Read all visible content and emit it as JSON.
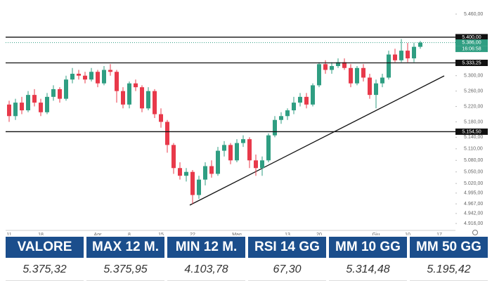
{
  "chart_data": {
    "type": "candlestick",
    "categories": [
      "11",
      null,
      null,
      null,
      null,
      "18",
      null,
      null,
      null,
      null,
      null,
      null,
      null,
      null,
      "Apr",
      null,
      null,
      null,
      null,
      "8",
      null,
      null,
      null,
      null,
      "15",
      null,
      null,
      null,
      null,
      "22",
      null,
      null,
      null,
      null,
      null,
      null,
      "Mag",
      null,
      null,
      null,
      null,
      null,
      null,
      null,
      "13",
      null,
      null,
      null,
      null,
      "20",
      null,
      null,
      null,
      null,
      null,
      null,
      null,
      null,
      "Giu",
      null,
      null,
      null,
      null,
      "10",
      null,
      null,
      null,
      null,
      "17"
    ],
    "open": [
      5225,
      5195,
      5230,
      5210,
      5250,
      5230,
      5205,
      5245,
      5265,
      5240,
      5290,
      5305,
      5300,
      5290,
      5310,
      5280,
      5315,
      5310,
      5260,
      5225,
      5280,
      5270,
      5215,
      5260,
      5200,
      5180,
      5120,
      5060,
      5040,
      5050,
      4990,
      5030,
      5065,
      5045,
      5105,
      5120,
      5080,
      5125,
      5135,
      5080,
      5060,
      5080,
      5145,
      5185,
      5195,
      5210,
      5230,
      5245,
      5225,
      5275,
      5330,
      5315,
      5325,
      5335,
      5320,
      5280,
      5320,
      5295,
      5250,
      5280,
      5295,
      5355,
      5340,
      5365,
      5345,
      5375,
      null,
      null,
      null
    ],
    "high": [
      5235,
      5240,
      5245,
      5260,
      5265,
      5240,
      5255,
      5275,
      5270,
      5300,
      5320,
      5315,
      5310,
      5320,
      5315,
      5325,
      5330,
      5315,
      5270,
      5285,
      5290,
      5275,
      5270,
      5265,
      5215,
      5185,
      5125,
      5075,
      5060,
      5055,
      5040,
      5075,
      5080,
      5115,
      5130,
      5125,
      5135,
      5145,
      5140,
      5095,
      5090,
      5150,
      5195,
      5205,
      5215,
      5245,
      5255,
      5255,
      5280,
      5335,
      5340,
      5335,
      5345,
      5345,
      5330,
      5325,
      5330,
      5305,
      5290,
      5305,
      5365,
      5370,
      5395,
      5385,
      5385,
      5390,
      null,
      null,
      null
    ],
    "low": [
      5180,
      5185,
      5200,
      5205,
      5220,
      5195,
      5200,
      5235,
      5230,
      5235,
      5280,
      5290,
      5280,
      5285,
      5270,
      5275,
      5300,
      5230,
      5215,
      5215,
      5260,
      5205,
      5210,
      5190,
      5165,
      5100,
      5045,
      5030,
      5025,
      4967,
      4980,
      5015,
      5035,
      5040,
      5090,
      5070,
      5075,
      5115,
      5060,
      5040,
      5040,
      5075,
      5140,
      5175,
      5185,
      5200,
      5220,
      5215,
      5220,
      5270,
      5305,
      5305,
      5320,
      5315,
      5270,
      5275,
      5285,
      5240,
      5215,
      5270,
      5290,
      5335,
      5335,
      5335,
      5335,
      5370,
      null,
      null,
      null
    ],
    "close": [
      5195,
      5230,
      5210,
      5250,
      5230,
      5205,
      5245,
      5265,
      5240,
      5290,
      5305,
      5300,
      5290,
      5310,
      5280,
      5315,
      5310,
      5260,
      5225,
      5280,
      5270,
      5215,
      5260,
      5200,
      5180,
      5120,
      5060,
      5040,
      5050,
      4990,
      5030,
      5065,
      5045,
      5105,
      5120,
      5080,
      5125,
      5135,
      5080,
      5060,
      5080,
      5145,
      5185,
      5195,
      5210,
      5230,
      5245,
      5225,
      5275,
      5330,
      5315,
      5325,
      5335,
      5320,
      5280,
      5320,
      5295,
      5250,
      5280,
      5295,
      5355,
      5340,
      5365,
      5345,
      5375,
      5386,
      null,
      null,
      null
    ],
    "up_color": "#2f9e82",
    "down_color": "#e8394a",
    "ylim": [
      4898,
      5482
    ],
    "yticks": [
      {
        "value": 5460,
        "label": "5.460,00"
      },
      {
        "value": 5300,
        "label": "5.300,00"
      },
      {
        "value": 5260,
        "label": "5.260,00"
      },
      {
        "value": 5220,
        "label": "5.220,00"
      },
      {
        "value": 5180,
        "label": "5.180,00"
      },
      {
        "value": 5140,
        "label": "5.140,00"
      },
      {
        "value": 5110,
        "label": "5.110,00"
      },
      {
        "value": 5080,
        "label": "5.080,00"
      },
      {
        "value": 5050,
        "label": "5.050,00"
      },
      {
        "value": 5020,
        "label": "5.020,00"
      },
      {
        "value": 4995,
        "label": "4.995,00"
      },
      {
        "value": 4967,
        "label": "4.967,00"
      },
      {
        "value": 4942,
        "label": "4.942,00"
      },
      {
        "value": 4916,
        "label": "4.916,00"
      }
    ],
    "levels": [
      {
        "value": 5400,
        "label": "5.400,00"
      },
      {
        "value": 5333.25,
        "label": "5.333,25"
      },
      {
        "value": 5154.5,
        "label": "5.154,50"
      }
    ],
    "last_price": {
      "value": 5386,
      "label": "5.386,00",
      "time": "16:06:58",
      "color": "#2f9e82"
    }
  },
  "table": {
    "headers": [
      "VALORE",
      "MAX 12 M.",
      "MIN 12 M.",
      "RSI 14 GG",
      "MM 10 GG",
      "MM 50 GG"
    ],
    "rows": [
      [
        "5.375,32",
        "5.375,95",
        "4.103,78",
        "67,30",
        "5.314,48",
        "5.195,42"
      ]
    ]
  }
}
